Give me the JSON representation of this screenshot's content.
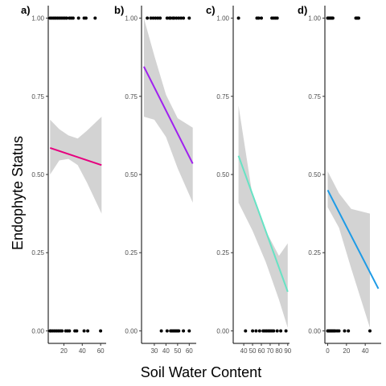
{
  "figure": {
    "xlabel": "Soil Water Content",
    "ylabel": "Endophyte Status"
  },
  "chart_data": [
    {
      "type": "scatter",
      "panel_label": "a)",
      "xlim": [
        3,
        66
      ],
      "ylim": [
        -0.04,
        1.04
      ],
      "xticks": [
        20,
        40,
        60
      ],
      "yticks": [
        0.0,
        0.25,
        0.5,
        0.75,
        1.0
      ],
      "ytick_labels": [
        "0.00",
        "0.25",
        "0.50",
        "0.75",
        "1.00"
      ],
      "grid": false,
      "points_y1": [
        5,
        7,
        9,
        11,
        13,
        15,
        17,
        19,
        21,
        23,
        26,
        28,
        30,
        36,
        42,
        44,
        54
      ],
      "points_y0": [
        5,
        6,
        8,
        10,
        12,
        14,
        16,
        18,
        22,
        24,
        26,
        32,
        34,
        42,
        46,
        60
      ],
      "fit": {
        "x": [
          5,
          61
        ],
        "y": [
          0.585,
          0.53
        ],
        "color": "#e6007e"
      },
      "ribbon": {
        "x": [
          5,
          15,
          25,
          35,
          45,
          61
        ],
        "lower": [
          0.5,
          0.545,
          0.55,
          0.53,
          0.475,
          0.375
        ],
        "upper": [
          0.675,
          0.645,
          0.625,
          0.615,
          0.64,
          0.685
        ]
      }
    },
    {
      "type": "scatter",
      "panel_label": "b)",
      "xlim": [
        19,
        66
      ],
      "ylim": [
        -0.04,
        1.04
      ],
      "xticks": [
        30,
        40,
        50,
        60
      ],
      "yticks": [
        0.0,
        0.25,
        0.5,
        0.75,
        1.0
      ],
      "ytick_labels": [
        "0.00",
        "0.25",
        "0.50",
        "0.75",
        "1.00"
      ],
      "grid": false,
      "points_y1": [
        24,
        27,
        29,
        31,
        33,
        35,
        41,
        43,
        44,
        46,
        47,
        49,
        51,
        53,
        55,
        60
      ],
      "points_y0": [
        36,
        41,
        44,
        45,
        46,
        47,
        48,
        49,
        50,
        51,
        55,
        60
      ],
      "fit": {
        "x": [
          21,
          63
        ],
        "y": [
          0.845,
          0.535
        ],
        "color": "#a020f0"
      },
      "ribbon": {
        "x": [
          21,
          30,
          40,
          50,
          63
        ],
        "lower": [
          0.685,
          0.675,
          0.62,
          0.52,
          0.41
        ],
        "upper": [
          1.0,
          0.88,
          0.755,
          0.68,
          0.65
        ]
      }
    },
    {
      "type": "scatter",
      "panel_label": "c)",
      "xlim": [
        28,
        92
      ],
      "ylim": [
        -0.04,
        1.04
      ],
      "xticks": [
        40,
        50,
        60,
        70,
        80,
        90
      ],
      "yticks": [
        0.0,
        0.25,
        0.5,
        0.75,
        1.0
      ],
      "ytick_labels": [
        "0.00",
        "0.25",
        "0.50",
        "0.75",
        "1.00"
      ],
      "grid": false,
      "points_y1": [
        34,
        55,
        57,
        60,
        72,
        74,
        76,
        78
      ],
      "points_y0": [
        42,
        50,
        54,
        58,
        62,
        64,
        66,
        68,
        70,
        72,
        74,
        78,
        82,
        88
      ],
      "fit": {
        "x": [
          34,
          90
        ],
        "y": [
          0.56,
          0.125
        ],
        "color": "#66e3c4"
      },
      "ribbon": {
        "x": [
          34,
          50,
          65,
          80,
          90
        ],
        "lower": [
          0.41,
          0.32,
          0.22,
          0.1,
          0.01
        ],
        "upper": [
          0.72,
          0.43,
          0.32,
          0.24,
          0.28
        ]
      }
    },
    {
      "type": "scatter",
      "panel_label": "d)",
      "xlim": [
        -3,
        57
      ],
      "ylim": [
        -0.04,
        1.04
      ],
      "xticks": [
        0,
        20,
        40
      ],
      "yticks": [
        0.0,
        0.25,
        0.5,
        0.75,
        1.0
      ],
      "ytick_labels": [
        "0.00",
        "0.25",
        "0.50",
        "0.75",
        "1.00"
      ],
      "grid": false,
      "points_y1": [
        0,
        0.5,
        1,
        1.5,
        2,
        2.5,
        3,
        3.5,
        4,
        4.5,
        5,
        5.5,
        30,
        31,
        32,
        33
      ],
      "points_y0": [
        0,
        0.5,
        1,
        1.5,
        2,
        2.5,
        3,
        3.5,
        4,
        5,
        6,
        7,
        8,
        10,
        12,
        18,
        22,
        45
      ],
      "fit": {
        "x": [
          0,
          54
        ],
        "y": [
          0.45,
          0.135
        ],
        "color": "#1e9be6"
      },
      "ribbon": {
        "x": [
          0,
          12,
          25,
          45
        ],
        "lower": [
          0.395,
          0.33,
          0.2,
          0.01
        ],
        "upper": [
          0.51,
          0.44,
          0.39,
          0.375
        ]
      }
    }
  ]
}
